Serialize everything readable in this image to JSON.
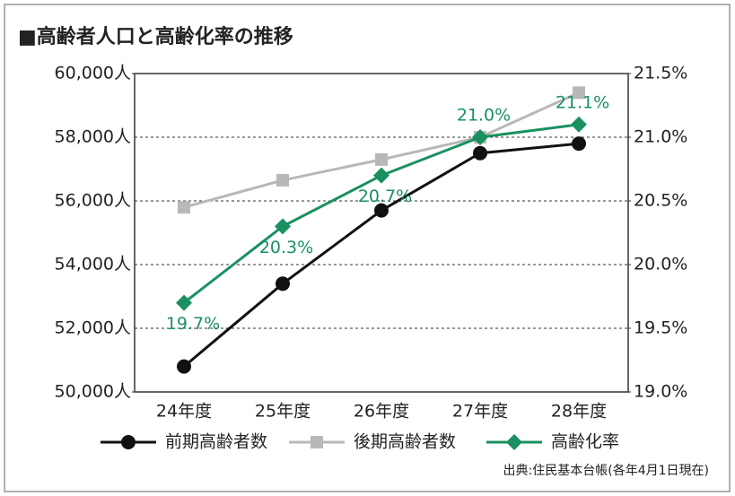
{
  "chart_data": {
    "type": "line",
    "title": "■高齢者人口と高齢化率の推移",
    "categories": [
      "24年度",
      "25年度",
      "26年度",
      "27年度",
      "28年度"
    ],
    "series": [
      {
        "name": "前期高齢者数",
        "color": "#111111",
        "marker": "circle",
        "values": [
          50800,
          53400,
          55700,
          57500,
          57800
        ]
      },
      {
        "name": "後期高齢者数",
        "color": "#b8b8b8",
        "marker": "square",
        "values": [
          55800,
          56650,
          57300,
          58000,
          59400
        ]
      },
      {
        "name": "高齢化率",
        "color": "#1a9060",
        "marker": "diamond",
        "axis": "y2",
        "values": [
          19.7,
          20.3,
          20.7,
          21.0,
          21.1
        ],
        "value_labels": [
          "19.7%",
          "20.3%",
          "20.7%",
          "21.0%",
          "21.1%"
        ]
      }
    ],
    "ylim": [
      50000,
      60000
    ],
    "yticks": [
      {
        "value": 50000,
        "label": "50,000人"
      },
      {
        "value": 52000,
        "label": "52,000人"
      },
      {
        "value": 54000,
        "label": "54,000人"
      },
      {
        "value": 56000,
        "label": "56,000人"
      },
      {
        "value": 58000,
        "label": "58,000人"
      },
      {
        "value": 60000,
        "label": "60,000人"
      }
    ],
    "y2lim": [
      19.0,
      21.5
    ],
    "y2ticks": [
      {
        "value": 19.0,
        "label": "19.0%"
      },
      {
        "value": 19.5,
        "label": "19.5%"
      },
      {
        "value": 20.0,
        "label": "20.0%"
      },
      {
        "value": 20.5,
        "label": "20.5%"
      },
      {
        "value": 21.0,
        "label": "21.0%"
      },
      {
        "value": 21.5,
        "label": "21.5%"
      }
    ],
    "grid": true,
    "source": "出典:住民基本台帳(各年4月1日現在)"
  }
}
